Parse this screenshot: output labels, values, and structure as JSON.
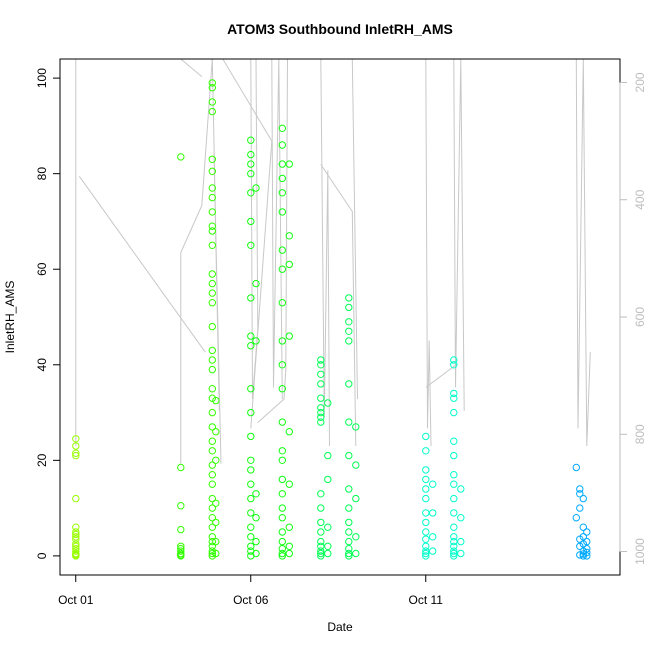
{
  "chart_data": {
    "type": "scatter",
    "title": "ATOM3 Southbound InletRH_AMS",
    "xlabel": "Date",
    "ylabel": "InletRH_AMS",
    "x_tick_labels": [
      {
        "label": "Oct 01",
        "day": 1
      },
      {
        "label": "Oct 06",
        "day": 6
      },
      {
        "label": "Oct 11",
        "day": 11
      }
    ],
    "x_range_days": [
      0.55,
      16.55
    ],
    "ylim": [
      -4,
      104
    ],
    "y_ticks": [
      0,
      20,
      40,
      60,
      80,
      100
    ],
    "secondary_axis": {
      "side": "right",
      "reversed": true,
      "range": [
        1040,
        160
      ],
      "ticks": [
        200,
        400,
        600,
        800,
        1000
      ],
      "color": "#bdbdbd"
    },
    "series": [
      {
        "color": "#99ff00",
        "points": [
          [
            1.0,
            24.5
          ],
          [
            1.0,
            23
          ],
          [
            1.0,
            21.5
          ],
          [
            1.0,
            21
          ],
          [
            1.0,
            12
          ],
          [
            1.0,
            6
          ],
          [
            1.0,
            5
          ],
          [
            1.0,
            4.5
          ],
          [
            1.0,
            4
          ],
          [
            1.0,
            3.5
          ],
          [
            1.0,
            2.5
          ],
          [
            1.0,
            2
          ],
          [
            1.0,
            1.5
          ],
          [
            1.0,
            1
          ],
          [
            1.0,
            0.5
          ],
          [
            1.0,
            0.3
          ],
          [
            1.0,
            0.1
          ],
          [
            1.0,
            0
          ]
        ]
      },
      {
        "color": "#33ff00",
        "points": [
          [
            4.0,
            83.5
          ],
          [
            4.0,
            18.5
          ],
          [
            4.0,
            10.5
          ],
          [
            4.0,
            5.5
          ],
          [
            4.0,
            2
          ],
          [
            4.0,
            1.5
          ],
          [
            4.0,
            1
          ],
          [
            4.0,
            0.5
          ],
          [
            4.0,
            0.2
          ],
          [
            4.0,
            0
          ],
          [
            4.9,
            99
          ],
          [
            4.9,
            98
          ],
          [
            4.9,
            95
          ],
          [
            4.9,
            93
          ],
          [
            4.9,
            83
          ],
          [
            4.9,
            80.5
          ],
          [
            4.9,
            77
          ],
          [
            4.9,
            75
          ],
          [
            4.9,
            72
          ],
          [
            4.9,
            69
          ],
          [
            4.9,
            68
          ],
          [
            4.9,
            65
          ],
          [
            4.9,
            59
          ],
          [
            4.9,
            57
          ],
          [
            4.9,
            55
          ],
          [
            4.9,
            53
          ],
          [
            4.9,
            48
          ],
          [
            4.9,
            43
          ],
          [
            4.9,
            41
          ],
          [
            4.9,
            39
          ],
          [
            4.9,
            35
          ],
          [
            4.9,
            33
          ],
          [
            4.9,
            30
          ],
          [
            4.9,
            27
          ],
          [
            4.9,
            24
          ],
          [
            4.9,
            22
          ],
          [
            4.9,
            19
          ],
          [
            4.9,
            17
          ],
          [
            4.9,
            15
          ],
          [
            4.9,
            12
          ],
          [
            4.9,
            10
          ],
          [
            4.9,
            8
          ],
          [
            4.9,
            6
          ],
          [
            4.9,
            4
          ],
          [
            4.9,
            3
          ],
          [
            4.9,
            2
          ],
          [
            4.9,
            1
          ],
          [
            4.9,
            0.5
          ],
          [
            4.9,
            0
          ],
          [
            5.0,
            32.5
          ],
          [
            5.0,
            26
          ],
          [
            5.0,
            20
          ],
          [
            5.0,
            11
          ],
          [
            5.0,
            7
          ],
          [
            5.0,
            3
          ],
          [
            5.0,
            0.5
          ]
        ]
      },
      {
        "color": "#11ff11",
        "points": [
          [
            6.0,
            87
          ],
          [
            6.0,
            84
          ],
          [
            6.0,
            82
          ],
          [
            6.0,
            80
          ],
          [
            6.0,
            76
          ],
          [
            6.0,
            70
          ],
          [
            6.0,
            65
          ],
          [
            6.0,
            54
          ],
          [
            6.0,
            46
          ],
          [
            6.0,
            44
          ],
          [
            6.0,
            35
          ],
          [
            6.0,
            30
          ],
          [
            6.0,
            25
          ],
          [
            6.0,
            20
          ],
          [
            6.0,
            18
          ],
          [
            6.0,
            15
          ],
          [
            6.0,
            12
          ],
          [
            6.0,
            9
          ],
          [
            6.0,
            6
          ],
          [
            6.0,
            4
          ],
          [
            6.0,
            2
          ],
          [
            6.0,
            1
          ],
          [
            6.0,
            0
          ],
          [
            6.15,
            77
          ],
          [
            6.15,
            57
          ],
          [
            6.15,
            45
          ],
          [
            6.15,
            13
          ],
          [
            6.15,
            8
          ],
          [
            6.15,
            3
          ],
          [
            6.15,
            0.5
          ],
          [
            6.9,
            89.5
          ],
          [
            6.9,
            86
          ],
          [
            6.9,
            82
          ],
          [
            6.9,
            79
          ],
          [
            6.9,
            76
          ],
          [
            6.9,
            72
          ],
          [
            6.9,
            64
          ],
          [
            6.9,
            60
          ],
          [
            6.9,
            53
          ],
          [
            6.9,
            45
          ],
          [
            6.9,
            40
          ],
          [
            6.9,
            35
          ],
          [
            6.9,
            28
          ],
          [
            6.9,
            22
          ],
          [
            6.9,
            20
          ],
          [
            6.9,
            16
          ],
          [
            6.9,
            13
          ],
          [
            6.9,
            10
          ],
          [
            6.9,
            8
          ],
          [
            6.9,
            5
          ],
          [
            6.9,
            3
          ],
          [
            6.9,
            1.5
          ],
          [
            6.9,
            0.5
          ],
          [
            6.9,
            0
          ],
          [
            7.1,
            82
          ],
          [
            7.1,
            67
          ],
          [
            7.1,
            61
          ],
          [
            7.1,
            46
          ],
          [
            7.1,
            26
          ],
          [
            7.1,
            15
          ],
          [
            7.1,
            6
          ],
          [
            7.1,
            2
          ],
          [
            7.1,
            0.5
          ]
        ]
      },
      {
        "color": "#00ff55",
        "points": [
          [
            8.0,
            41
          ],
          [
            8.0,
            40
          ],
          [
            8.0,
            38
          ],
          [
            8.0,
            36
          ],
          [
            8.0,
            33
          ],
          [
            8.0,
            31
          ],
          [
            8.0,
            30
          ],
          [
            8.0,
            29
          ],
          [
            8.0,
            28
          ],
          [
            8.0,
            13
          ],
          [
            8.0,
            10
          ],
          [
            8.0,
            7
          ],
          [
            8.0,
            5
          ],
          [
            8.0,
            3
          ],
          [
            8.0,
            2
          ],
          [
            8.0,
            1
          ],
          [
            8.0,
            0.5
          ],
          [
            8.0,
            0
          ],
          [
            8.2,
            32
          ],
          [
            8.2,
            21
          ],
          [
            8.2,
            16
          ],
          [
            8.2,
            6
          ],
          [
            8.2,
            2
          ],
          [
            8.2,
            0.5
          ],
          [
            8.8,
            54
          ],
          [
            8.8,
            52
          ],
          [
            8.8,
            49
          ],
          [
            8.8,
            47
          ],
          [
            8.8,
            45
          ],
          [
            8.8,
            36
          ],
          [
            8.8,
            28
          ],
          [
            8.8,
            21
          ],
          [
            8.8,
            14
          ],
          [
            8.8,
            10
          ],
          [
            8.8,
            7
          ],
          [
            8.8,
            5
          ],
          [
            8.8,
            3
          ],
          [
            8.8,
            1.5
          ],
          [
            8.8,
            0.5
          ],
          [
            8.8,
            0
          ],
          [
            9.0,
            27
          ],
          [
            9.0,
            19
          ],
          [
            9.0,
            12
          ],
          [
            9.0,
            4
          ],
          [
            9.0,
            0.5
          ]
        ]
      },
      {
        "color": "#00ffcc",
        "points": [
          [
            11.0,
            25
          ],
          [
            11.0,
            22
          ],
          [
            11.0,
            18
          ],
          [
            11.0,
            16
          ],
          [
            11.0,
            14
          ],
          [
            11.0,
            12
          ],
          [
            11.0,
            9
          ],
          [
            11.0,
            7
          ],
          [
            11.0,
            5
          ],
          [
            11.0,
            3.5
          ],
          [
            11.0,
            2
          ],
          [
            11.0,
            1
          ],
          [
            11.0,
            0.5
          ],
          [
            11.0,
            0
          ],
          [
            11.2,
            15
          ],
          [
            11.2,
            9
          ],
          [
            11.2,
            4
          ],
          [
            11.2,
            1
          ],
          [
            11.8,
            41
          ],
          [
            11.8,
            40
          ],
          [
            11.8,
            34
          ],
          [
            11.8,
            33
          ],
          [
            11.8,
            30
          ],
          [
            11.8,
            24
          ],
          [
            11.8,
            21
          ],
          [
            11.8,
            17
          ],
          [
            11.8,
            15
          ],
          [
            11.8,
            12
          ],
          [
            11.8,
            9
          ],
          [
            11.8,
            6
          ],
          [
            11.8,
            4
          ],
          [
            11.8,
            3
          ],
          [
            11.8,
            2
          ],
          [
            11.8,
            1
          ],
          [
            11.8,
            0.5
          ],
          [
            11.8,
            0
          ],
          [
            12.0,
            14
          ],
          [
            12.0,
            8
          ],
          [
            12.0,
            3
          ],
          [
            12.0,
            0.5
          ]
        ]
      },
      {
        "color": "#00aaff",
        "points": [
          [
            15.3,
            18.5
          ],
          [
            15.4,
            14
          ],
          [
            15.4,
            13
          ],
          [
            15.5,
            12
          ],
          [
            15.4,
            10
          ],
          [
            15.3,
            8
          ],
          [
            15.5,
            6
          ],
          [
            15.6,
            5
          ],
          [
            15.5,
            4
          ],
          [
            15.4,
            3.5
          ],
          [
            15.6,
            3
          ],
          [
            15.5,
            2.5
          ],
          [
            15.4,
            2
          ],
          [
            15.6,
            1.5
          ],
          [
            15.5,
            1
          ],
          [
            15.6,
            0.7
          ],
          [
            15.5,
            0.4
          ],
          [
            15.4,
            0.2
          ],
          [
            15.6,
            0
          ],
          [
            15.5,
            0
          ]
        ]
      }
    ],
    "background_trace": {
      "color": "#c8c8c8",
      "description_units": "secondary axis",
      "segments": [
        [
          [
            1.0,
            160
          ],
          [
            1.0,
            500
          ],
          [
            1.0,
            600
          ],
          [
            1.0,
            820
          ]
        ],
        [
          [
            1.1,
            360
          ],
          [
            4.7,
            660
          ]
        ],
        [
          [
            4.0,
            850
          ],
          [
            4.0,
            490
          ],
          [
            4.6,
            410
          ],
          [
            4.9,
            160
          ]
        ],
        [
          [
            4.0,
            160
          ],
          [
            4.6,
            190
          ]
        ],
        [
          [
            4.9,
            160
          ],
          [
            5.1,
            760
          ],
          [
            4.95,
            320
          ],
          [
            5.15,
            850
          ]
        ],
        [
          [
            5.2,
            160
          ],
          [
            6.6,
            300
          ],
          [
            6.0,
            790
          ]
        ],
        [
          [
            6.0,
            160
          ],
          [
            6.05,
            740
          ],
          [
            6.2,
            620
          ],
          [
            6.15,
            160
          ]
        ],
        [
          [
            6.6,
            160
          ],
          [
            6.65,
            720
          ],
          [
            6.8,
            160
          ],
          [
            6.9,
            740
          ]
        ],
        [
          [
            6.2,
            780
          ],
          [
            6.95,
            740
          ],
          [
            7.0,
            690
          ],
          [
            7.05,
            160
          ]
        ],
        [
          [
            8.0,
            160
          ],
          [
            8.1,
            770
          ],
          [
            8.2,
            350
          ],
          [
            8.25,
            820
          ]
        ],
        [
          [
            8.0,
            340
          ],
          [
            8.9,
            420
          ],
          [
            9.0,
            820
          ]
        ],
        [
          [
            8.9,
            160
          ],
          [
            9.05,
            740
          ]
        ],
        [
          [
            11.0,
            160
          ],
          [
            11.05,
            790
          ],
          [
            11.1,
            640
          ],
          [
            11.15,
            820
          ]
        ],
        [
          [
            11.0,
            720
          ],
          [
            11.9,
            680
          ]
        ],
        [
          [
            11.8,
            160
          ],
          [
            11.85,
            720
          ],
          [
            12.0,
            160
          ],
          [
            12.1,
            760
          ]
        ],
        [
          [
            15.3,
            160
          ],
          [
            15.35,
            790
          ],
          [
            15.5,
            160
          ],
          [
            15.6,
            820
          ],
          [
            15.7,
            660
          ]
        ]
      ]
    }
  }
}
